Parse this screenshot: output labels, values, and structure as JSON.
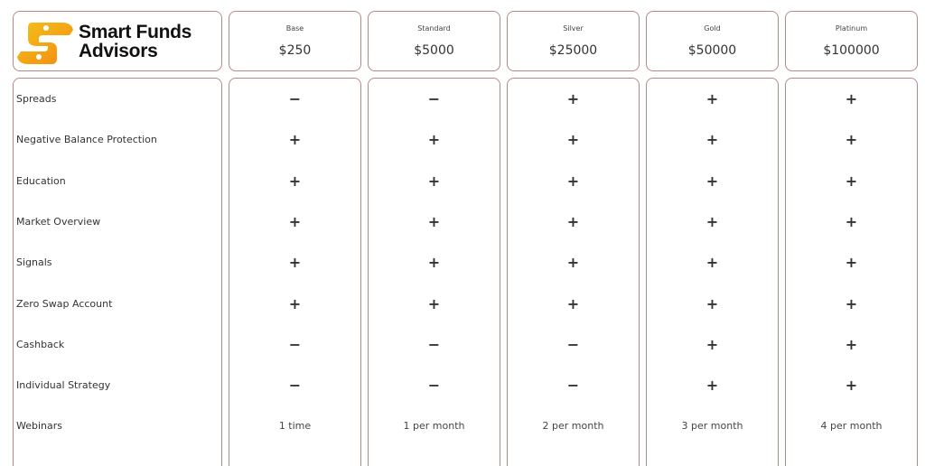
{
  "brand": {
    "name_line1": "Smart Funds",
    "name_line2": "Advisors",
    "logo_colors": [
      "#f7a21b",
      "#f2c21a",
      "#f58a0f"
    ]
  },
  "plans": [
    {
      "tier": "Base",
      "price": "$250"
    },
    {
      "tier": "Standard",
      "price": "$5000"
    },
    {
      "tier": "Silver",
      "price": "$25000"
    },
    {
      "tier": "Gold",
      "price": "$50000"
    },
    {
      "tier": "Platinum",
      "price": "$100000"
    }
  ],
  "features": [
    {
      "label": "Spreads",
      "values": [
        "−",
        "−",
        "+",
        "+",
        "+"
      ]
    },
    {
      "label": "Negative Balance Protection",
      "values": [
        "+",
        "+",
        "+",
        "+",
        "+"
      ]
    },
    {
      "label": "Education",
      "values": [
        "+",
        "+",
        "+",
        "+",
        "+"
      ]
    },
    {
      "label": "Market Overview",
      "values": [
        "+",
        "+",
        "+",
        "+",
        "+"
      ]
    },
    {
      "label": "Signals",
      "values": [
        "+",
        "+",
        "+",
        "+",
        "+"
      ]
    },
    {
      "label": "Zero Swap Account",
      "values": [
        "+",
        "+",
        "+",
        "+",
        "+"
      ]
    },
    {
      "label": "Cashback",
      "values": [
        "−",
        "−",
        "−",
        "+",
        "+"
      ]
    },
    {
      "label": "Individual Strategy",
      "values": [
        "−",
        "−",
        "−",
        "+",
        "+"
      ]
    },
    {
      "label": "Webinars",
      "values": [
        "1 time",
        "1 per month",
        "2 per month",
        "3 per month",
        "4 per month"
      ]
    }
  ],
  "colors": {
    "border": "#b48a88"
  }
}
